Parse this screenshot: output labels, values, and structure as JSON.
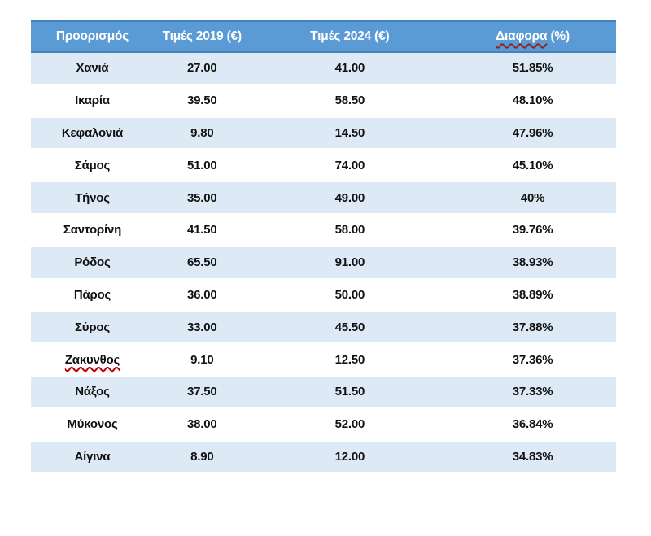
{
  "colors": {
    "header_bg": "#5b9bd5",
    "header_border": "#4383bd",
    "header_text": "#ffffff",
    "band_bg": "#dde9f4",
    "body_text": "#111111",
    "squiggle_body": "#c00000",
    "squiggle_header": "#8e2424"
  },
  "table": {
    "columns": [
      {
        "label": "Προορισμός"
      },
      {
        "label": "Τιμές 2019 (€)"
      },
      {
        "label": "Τιμές 2024 (€)"
      },
      {
        "label": "Διαφορα",
        "suffix": " (%)",
        "misspelled": true
      }
    ],
    "rows": [
      {
        "destination": "Χανιά",
        "misspelled": false,
        "price_2019": "27.00",
        "price_2024": "41.00",
        "difference": "51.85%"
      },
      {
        "destination": "Ικαρία",
        "misspelled": false,
        "price_2019": "39.50",
        "price_2024": "58.50",
        "difference": "48.10%"
      },
      {
        "destination": "Κεφαλονιά",
        "misspelled": false,
        "price_2019": "9.80",
        "price_2024": "14.50",
        "difference": "47.96%"
      },
      {
        "destination": "Σάμος",
        "misspelled": false,
        "price_2019": "51.00",
        "price_2024": "74.00",
        "difference": "45.10%"
      },
      {
        "destination": "Τήνος",
        "misspelled": false,
        "price_2019": "35.00",
        "price_2024": "49.00",
        "difference": "40%"
      },
      {
        "destination": "Σαντορίνη",
        "misspelled": false,
        "price_2019": "41.50",
        "price_2024": "58.00",
        "difference": "39.76%"
      },
      {
        "destination": "Ρόδος",
        "misspelled": false,
        "price_2019": "65.50",
        "price_2024": "91.00",
        "difference": "38.93%"
      },
      {
        "destination": "Πάρος",
        "misspelled": false,
        "price_2019": "36.00",
        "price_2024": "50.00",
        "difference": "38.89%"
      },
      {
        "destination": "Σύρος",
        "misspelled": false,
        "price_2019": "33.00",
        "price_2024": "45.50",
        "difference": "37.88%"
      },
      {
        "destination": "Ζακυνθος",
        "misspelled": true,
        "price_2019": "9.10",
        "price_2024": "12.50",
        "difference": "37.36%"
      },
      {
        "destination": "Νάξος",
        "misspelled": false,
        "price_2019": "37.50",
        "price_2024": "51.50",
        "difference": "37.33%"
      },
      {
        "destination": "Μύκονος",
        "misspelled": false,
        "price_2019": "38.00",
        "price_2024": "52.00",
        "difference": "36.84%"
      },
      {
        "destination": "Αίγινα",
        "misspelled": false,
        "price_2019": "8.90",
        "price_2024": "12.00",
        "difference": "34.83%"
      }
    ]
  }
}
